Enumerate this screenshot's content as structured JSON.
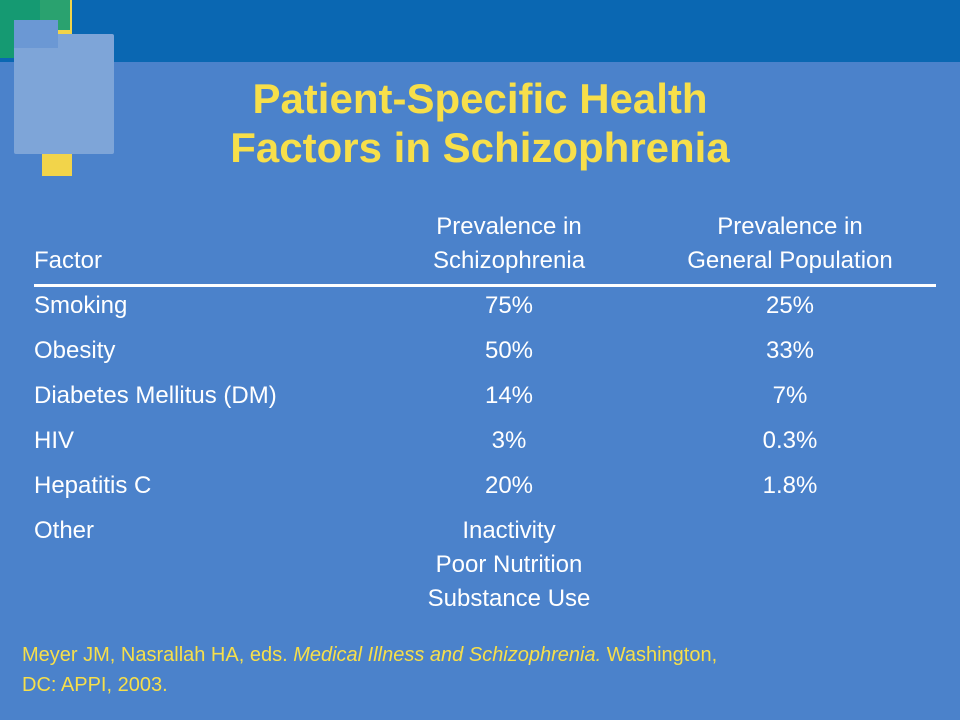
{
  "title": {
    "line1": "Patient-Specific Health",
    "line2": "Factors in Schizophrenia"
  },
  "table": {
    "headers": {
      "factor": "Factor",
      "schizophrenia_line1": "Prevalence in",
      "schizophrenia_line2": "Schizophrenia",
      "general_line1": "Prevalence in",
      "general_line2": "General Population"
    },
    "rows": [
      {
        "factor": "Smoking",
        "schizophrenia": "75%",
        "general": "25%"
      },
      {
        "factor": "Obesity",
        "schizophrenia": "50%",
        "general": "33%"
      },
      {
        "factor": "Diabetes Mellitus (DM)",
        "schizophrenia": "14%",
        "general": "7%"
      },
      {
        "factor": "HIV",
        "schizophrenia": "3%",
        "general": "0.3%"
      },
      {
        "factor": "Hepatitis C",
        "schizophrenia": "20%",
        "general": "1.8%"
      }
    ],
    "other": {
      "factor": "Other",
      "items": [
        "Inactivity",
        "Poor Nutrition",
        "Substance Use"
      ]
    }
  },
  "citation": {
    "authors": "Meyer JM, Nasrallah HA, eds. ",
    "book": "Medical Illness and Schizophrenia.",
    "publisher_line1": " Washington,",
    "publisher_line2": "DC: APPI, 2003."
  },
  "colors": {
    "background": "#4b82cb",
    "top_band": "#0a67b2",
    "title": "#f7df4a",
    "text": "#ffffff"
  }
}
